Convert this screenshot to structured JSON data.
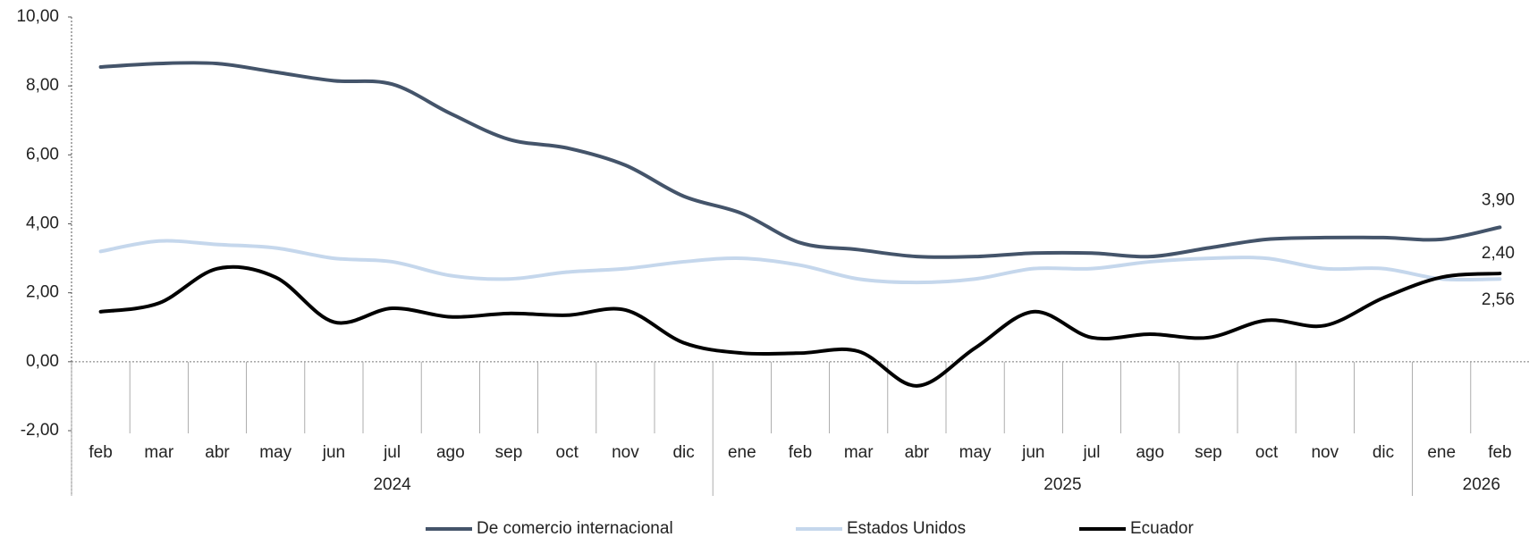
{
  "chart_data": {
    "type": "line",
    "groups": [
      {
        "year": "2024",
        "months": [
          "feb",
          "mar",
          "abr",
          "may",
          "jun",
          "jul",
          "ago",
          "sep",
          "oct",
          "nov",
          "dic"
        ]
      },
      {
        "year": "2025",
        "months": [
          "ene",
          "feb",
          "mar",
          "abr",
          "may",
          "jun",
          "jul",
          "ago",
          "sep",
          "oct",
          "nov",
          "dic"
        ]
      },
      {
        "year": "2026",
        "months": [
          "ene",
          "feb"
        ]
      }
    ],
    "series": [
      {
        "name": "De comercio internacional",
        "color": "#44546a",
        "values": [
          8.55,
          8.65,
          8.65,
          8.4,
          8.15,
          8.05,
          7.2,
          6.45,
          6.2,
          5.7,
          4.8,
          4.3,
          3.45,
          3.25,
          3.05,
          3.05,
          3.15,
          3.15,
          3.05,
          3.3,
          3.55,
          3.6,
          3.6,
          3.55,
          3.9
        ],
        "value_labels": [
          null,
          null,
          null,
          null,
          null,
          null,
          null,
          null,
          null,
          null,
          null,
          null,
          null,
          null,
          null,
          null,
          null,
          null,
          null,
          null,
          null,
          null,
          null,
          null,
          "3,90"
        ]
      },
      {
        "name": "Estados Unidos",
        "color": "#c5d7ec",
        "values": [
          3.2,
          3.5,
          3.4,
          3.3,
          3.0,
          2.9,
          2.5,
          2.4,
          2.6,
          2.7,
          2.9,
          3.0,
          2.8,
          2.4,
          2.3,
          2.4,
          2.7,
          2.7,
          2.9,
          3.0,
          3.0,
          2.7,
          2.7,
          2.4,
          2.4
        ],
        "value_labels": [
          null,
          null,
          null,
          null,
          null,
          null,
          null,
          null,
          null,
          null,
          null,
          null,
          null,
          null,
          null,
          null,
          null,
          null,
          null,
          null,
          null,
          null,
          null,
          null,
          "2,40"
        ]
      },
      {
        "name": "Ecuador",
        "color": "#000000",
        "values": [
          1.45,
          1.7,
          2.7,
          2.45,
          1.15,
          1.55,
          1.3,
          1.4,
          1.35,
          1.5,
          0.55,
          0.25,
          0.25,
          0.3,
          -0.7,
          0.4,
          1.45,
          0.7,
          0.8,
          0.7,
          1.2,
          1.05,
          1.85,
          2.45,
          2.56
        ],
        "value_labels": [
          null,
          null,
          null,
          null,
          null,
          null,
          null,
          null,
          null,
          null,
          null,
          null,
          null,
          null,
          null,
          null,
          null,
          null,
          null,
          null,
          null,
          null,
          null,
          null,
          "2,56"
        ]
      }
    ],
    "ylim": [
      -2,
      10
    ],
    "yticks": [
      {
        "value": -2,
        "label": "-2,00"
      },
      {
        "value": 0,
        "label": "0,00"
      },
      {
        "value": 2,
        "label": "2,00"
      },
      {
        "value": 4,
        "label": "4,00"
      },
      {
        "value": 6,
        "label": "6,00"
      },
      {
        "value": 8,
        "label": "8,00"
      },
      {
        "value": 10,
        "label": "10,00"
      }
    ],
    "legend": "bottom"
  }
}
